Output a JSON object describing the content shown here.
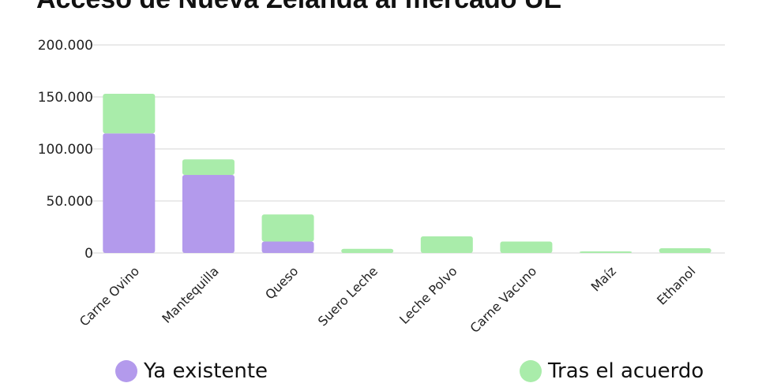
{
  "chart_data": {
    "type": "bar",
    "stacked": true,
    "title": "Acceso de Nueva Zelanda al mercado UE",
    "xlabel": "",
    "ylabel": "",
    "ylim": [
      0,
      200000
    ],
    "yticks": [
      0,
      50000,
      100000,
      150000,
      200000
    ],
    "ytick_labels": [
      "0",
      "50.000",
      "100.000",
      "150.000",
      "200.000"
    ],
    "categories": [
      "Carne Ovino",
      "Mantequilla",
      "Queso",
      "Suero Leche",
      "Leche Polvo",
      "Carne Vacuno",
      "Maíz",
      "Ethanol"
    ],
    "series": [
      {
        "name": "Ya existente",
        "color": "#b39aec",
        "values": [
          115000,
          75000,
          11000,
          0,
          0,
          0,
          0,
          0
        ]
      },
      {
        "name": "Tras el acuerdo",
        "color": "#a9ecaa",
        "values": [
          38000,
          15000,
          26000,
          4000,
          16000,
          11000,
          1500,
          4500
        ]
      }
    ],
    "grid": true,
    "legend_position": "bottom"
  }
}
